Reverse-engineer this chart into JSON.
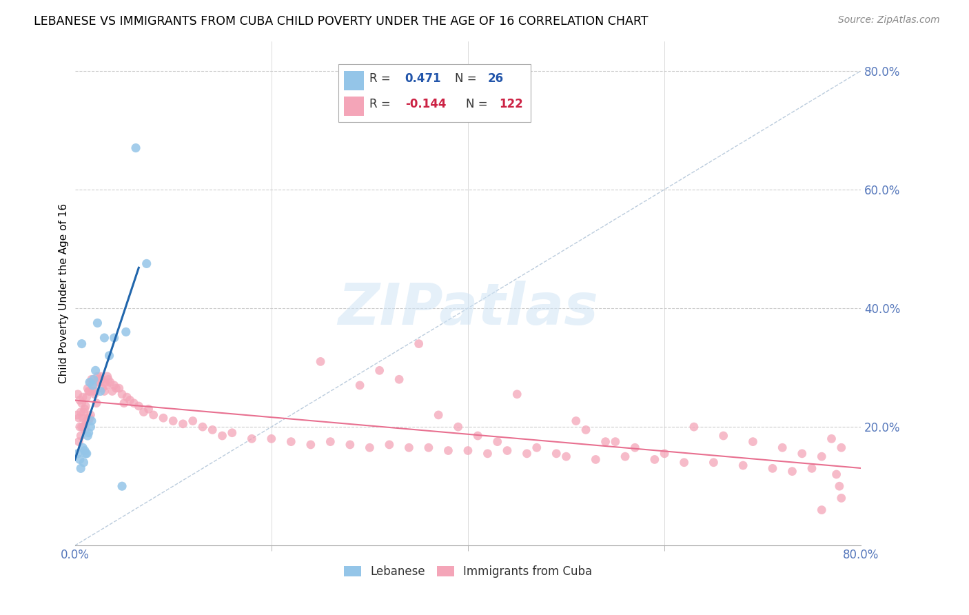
{
  "title": "LEBANESE VS IMMIGRANTS FROM CUBA CHILD POVERTY UNDER THE AGE OF 16 CORRELATION CHART",
  "source": "Source: ZipAtlas.com",
  "ylabel": "Child Poverty Under the Age of 16",
  "xlim": [
    0,
    0.8
  ],
  "ylim": [
    0,
    0.85
  ],
  "ytick_vals": [
    0.2,
    0.4,
    0.6,
    0.8
  ],
  "ytick_labels": [
    "20.0%",
    "40.0%",
    "60.0%",
    "80.0%"
  ],
  "xtick_vals": [
    0.0,
    0.8
  ],
  "xtick_labels": [
    "0.0%",
    "80.0%"
  ],
  "xtick_minor_vals": [
    0.2,
    0.4,
    0.6
  ],
  "color_lebanese": "#94C5E8",
  "color_cuba": "#F4A5B8",
  "color_trend_lebanese": "#2166ac",
  "color_trend_cuba": "#e87090",
  "color_diagonal": "#bbccdd",
  "color_right_labels": "#5577bb",
  "color_bottom_labels": "#5577bb",
  "watermark": "ZIPatlas",
  "lebanese_x": [
    0.003,
    0.005,
    0.006,
    0.007,
    0.008,
    0.009,
    0.01,
    0.011,
    0.012,
    0.013,
    0.014,
    0.015,
    0.016,
    0.017,
    0.018,
    0.019,
    0.021,
    0.023,
    0.026,
    0.03,
    0.035,
    0.04,
    0.048,
    0.052,
    0.062,
    0.073
  ],
  "lebanese_y": [
    0.155,
    0.145,
    0.13,
    0.34,
    0.165,
    0.14,
    0.16,
    0.155,
    0.155,
    0.185,
    0.19,
    0.275,
    0.2,
    0.21,
    0.27,
    0.28,
    0.295,
    0.375,
    0.26,
    0.35,
    0.32,
    0.35,
    0.1,
    0.36,
    0.67,
    0.475
  ],
  "cuba_x": [
    0.002,
    0.003,
    0.004,
    0.004,
    0.005,
    0.005,
    0.006,
    0.006,
    0.007,
    0.007,
    0.008,
    0.008,
    0.009,
    0.009,
    0.01,
    0.01,
    0.011,
    0.011,
    0.012,
    0.012,
    0.013,
    0.013,
    0.014,
    0.014,
    0.015,
    0.015,
    0.016,
    0.016,
    0.017,
    0.018,
    0.019,
    0.02,
    0.021,
    0.022,
    0.023,
    0.024,
    0.025,
    0.026,
    0.027,
    0.028,
    0.03,
    0.031,
    0.032,
    0.033,
    0.034,
    0.036,
    0.038,
    0.04,
    0.042,
    0.045,
    0.048,
    0.05,
    0.053,
    0.056,
    0.06,
    0.065,
    0.07,
    0.075,
    0.08,
    0.09,
    0.1,
    0.11,
    0.12,
    0.13,
    0.14,
    0.15,
    0.16,
    0.18,
    0.2,
    0.22,
    0.24,
    0.26,
    0.28,
    0.3,
    0.32,
    0.34,
    0.36,
    0.38,
    0.4,
    0.42,
    0.44,
    0.46,
    0.5,
    0.53,
    0.56,
    0.59,
    0.62,
    0.65,
    0.68,
    0.71,
    0.73,
    0.75,
    0.76,
    0.77,
    0.775,
    0.778,
    0.54,
    0.45,
    0.35,
    0.25,
    0.29,
    0.31,
    0.33,
    0.37,
    0.39,
    0.41,
    0.43,
    0.47,
    0.49,
    0.51,
    0.52,
    0.55,
    0.57,
    0.6,
    0.63,
    0.66,
    0.69,
    0.72,
    0.74,
    0.76,
    0.78,
    0.78
  ],
  "cuba_y": [
    0.22,
    0.255,
    0.175,
    0.215,
    0.245,
    0.2,
    0.225,
    0.185,
    0.24,
    0.2,
    0.25,
    0.215,
    0.225,
    0.2,
    0.23,
    0.195,
    0.235,
    0.205,
    0.25,
    0.21,
    0.265,
    0.215,
    0.26,
    0.21,
    0.26,
    0.215,
    0.275,
    0.22,
    0.28,
    0.26,
    0.27,
    0.255,
    0.26,
    0.24,
    0.285,
    0.28,
    0.275,
    0.285,
    0.28,
    0.265,
    0.26,
    0.275,
    0.27,
    0.285,
    0.28,
    0.275,
    0.26,
    0.27,
    0.265,
    0.265,
    0.255,
    0.24,
    0.25,
    0.245,
    0.24,
    0.235,
    0.225,
    0.23,
    0.22,
    0.215,
    0.21,
    0.205,
    0.21,
    0.2,
    0.195,
    0.185,
    0.19,
    0.18,
    0.18,
    0.175,
    0.17,
    0.175,
    0.17,
    0.165,
    0.17,
    0.165,
    0.165,
    0.16,
    0.16,
    0.155,
    0.16,
    0.155,
    0.15,
    0.145,
    0.15,
    0.145,
    0.14,
    0.14,
    0.135,
    0.13,
    0.125,
    0.13,
    0.06,
    0.18,
    0.12,
    0.1,
    0.175,
    0.255,
    0.34,
    0.31,
    0.27,
    0.295,
    0.28,
    0.22,
    0.2,
    0.185,
    0.175,
    0.165,
    0.155,
    0.21,
    0.195,
    0.175,
    0.165,
    0.155,
    0.2,
    0.185,
    0.175,
    0.165,
    0.155,
    0.15,
    0.165,
    0.08
  ]
}
